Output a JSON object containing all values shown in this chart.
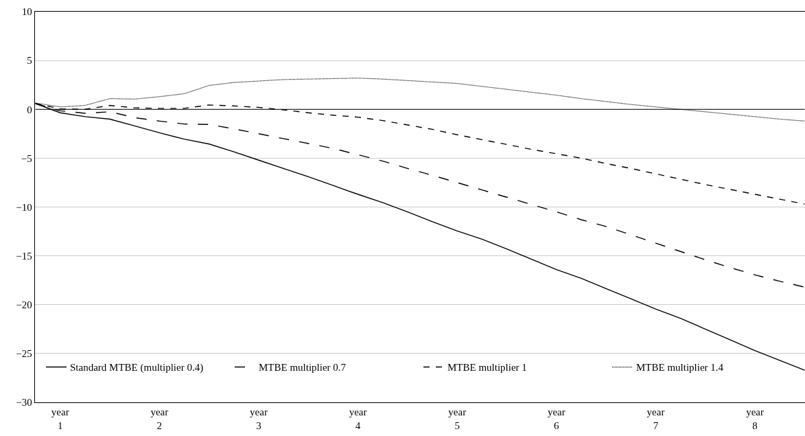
{
  "chart_data": {
    "type": "line",
    "categories": [
      null,
      "year\n1",
      null,
      null,
      null,
      "year\n2",
      null,
      null,
      null,
      "year\n3",
      null,
      null,
      null,
      "year\n4",
      null,
      null,
      null,
      "year\n5",
      null,
      null,
      null,
      "year\n6",
      null,
      null,
      null,
      "year\n7",
      null,
      null,
      null,
      "year\n8",
      null,
      null
    ],
    "series": [
      {
        "name": "Standard MTBE (multiplier 0.4)",
        "color": "#000000",
        "line_style": "solid",
        "values": [
          0.6,
          -0.35,
          -0.75,
          -1.0,
          -1.7,
          -2.4,
          -3.05,
          -3.55,
          -4.35,
          -5.2,
          -6.05,
          -6.9,
          -7.8,
          -8.7,
          -9.55,
          -10.5,
          -11.5,
          -12.45,
          -13.3,
          -14.3,
          -15.35,
          -16.4,
          -17.3,
          -18.35,
          -19.4,
          -20.45,
          -21.4,
          -22.5,
          -23.6,
          -24.7,
          -25.7,
          -26.7
        ]
      },
      {
        "name": "MTBE multiplier 0.7",
        "color": "#000000",
        "line_style": "dashed",
        "values": [
          0.6,
          -0.15,
          -0.4,
          -0.25,
          -0.85,
          -1.2,
          -1.5,
          -1.55,
          -2.0,
          -2.5,
          -3.0,
          -3.5,
          -4.0,
          -4.65,
          -5.3,
          -6.05,
          -6.75,
          -7.5,
          -8.25,
          -9.0,
          -9.75,
          -10.5,
          -11.3,
          -12.0,
          -12.85,
          -13.7,
          -14.55,
          -15.4,
          -16.2,
          -16.95,
          -17.6,
          -18.2
        ]
      },
      {
        "name": "MTBE multiplier 1",
        "color": "#000000",
        "line_style": "dashed",
        "values": [
          0.6,
          0.05,
          0.0,
          0.4,
          0.15,
          0.1,
          0.1,
          0.45,
          0.35,
          0.2,
          -0.05,
          -0.35,
          -0.6,
          -0.8,
          -1.15,
          -1.6,
          -2.05,
          -2.6,
          -3.1,
          -3.6,
          -4.1,
          -4.55,
          -5.0,
          -5.55,
          -6.05,
          -6.6,
          -7.15,
          -7.7,
          -8.2,
          -8.7,
          -9.2,
          -9.7
        ]
      },
      {
        "name": "MTBE multiplier 1.4",
        "color": "#000000",
        "line_style": "dotted",
        "values": [
          0.65,
          0.25,
          0.4,
          1.1,
          1.05,
          1.3,
          1.6,
          2.45,
          2.75,
          2.9,
          3.05,
          3.1,
          3.15,
          3.2,
          3.1,
          2.95,
          2.8,
          2.65,
          2.35,
          2.05,
          1.75,
          1.45,
          1.1,
          0.8,
          0.5,
          0.25,
          0.0,
          -0.25,
          -0.5,
          -0.75,
          -1.0,
          -1.2
        ]
      }
    ],
    "ylim": [
      -30,
      10
    ],
    "yticks": [
      {
        "value": -30,
        "label": "−30"
      },
      {
        "value": -25,
        "label": "−25"
      },
      {
        "value": -20,
        "label": "−20"
      },
      {
        "value": -15,
        "label": "−15"
      },
      {
        "value": -10,
        "label": "−10"
      },
      {
        "value": -5,
        "label": "−5"
      },
      0,
      5,
      10
    ],
    "ref_lines": [
      {
        "axis": "y",
        "value": 0,
        "color": "#000000",
        "line_style": "solid"
      }
    ],
    "grid": "y",
    "legend": "bottom",
    "marker": "none"
  }
}
